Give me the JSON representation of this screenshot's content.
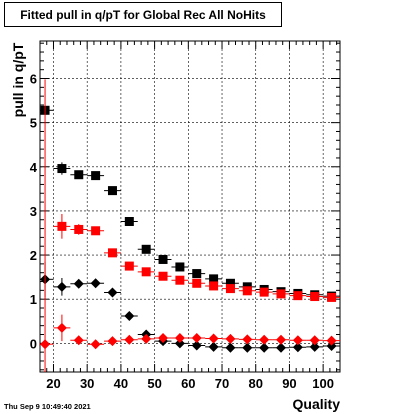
{
  "chart_data": {
    "type": "scatter",
    "title": "Fitted pull in q/pT for Global Rec All NoHits",
    "xlabel": "Quality",
    "ylabel": "pull in q/pT",
    "xlim": [
      16,
      105
    ],
    "ylim": [
      -0.65,
      6.85
    ],
    "x_ticks": [
      20,
      30,
      40,
      50,
      60,
      70,
      80,
      90,
      100
    ],
    "y_ticks": [
      0,
      1,
      2,
      3,
      4,
      5,
      6
    ],
    "grid": true,
    "legend": "none",
    "series": [
      {
        "marker": "square",
        "color": "#000000",
        "x": [
          17.5,
          22.5,
          27.5,
          32.5,
          37.5,
          42.5,
          47.5,
          52.5,
          57.5,
          62.5,
          67.5,
          72.5,
          77.5,
          82.5,
          87.5,
          92.5,
          97.5,
          102.5
        ],
        "y": [
          5.28,
          3.96,
          3.82,
          3.8,
          3.46,
          2.76,
          2.13,
          1.9,
          1.73,
          1.58,
          1.46,
          1.36,
          1.28,
          1.22,
          1.17,
          1.13,
          1.1,
          1.07
        ],
        "yerr": [
          0.1,
          0.14,
          0.07,
          0.05,
          0.05,
          0.05,
          0.04,
          0.04,
          0.03,
          0.03,
          0.03,
          0.03,
          0.02,
          0.02,
          0.02,
          0.02,
          0.02,
          0.02
        ]
      },
      {
        "marker": "square",
        "color": "#ff0000",
        "x": [
          22.5,
          27.5,
          32.5,
          37.5,
          42.5,
          47.5,
          52.5,
          57.5,
          62.5,
          67.5,
          72.5,
          77.5,
          82.5,
          87.5,
          92.5,
          97.5,
          102.5
        ],
        "y": [
          2.65,
          2.58,
          2.55,
          2.05,
          1.75,
          1.62,
          1.52,
          1.43,
          1.36,
          1.3,
          1.24,
          1.19,
          1.16,
          1.12,
          1.08,
          1.06,
          1.04
        ],
        "yerr": [
          0.28,
          0.12,
          0.06,
          0.05,
          0.04,
          0.04,
          0.04,
          0.03,
          0.03,
          0.03,
          0.03,
          0.02,
          0.02,
          0.02,
          0.02,
          0.02,
          0.02
        ]
      },
      {
        "marker": "diamond",
        "color": "#000000",
        "x": [
          17.5,
          22.5,
          27.5,
          32.5,
          37.5,
          42.5,
          47.5,
          52.5,
          57.5,
          62.5,
          67.5,
          72.5,
          77.5,
          82.5,
          87.5,
          92.5,
          97.5,
          102.5
        ],
        "y": [
          1.45,
          1.28,
          1.35,
          1.36,
          1.15,
          0.62,
          0.2,
          0.05,
          0.0,
          -0.05,
          -0.08,
          -0.1,
          -0.1,
          -0.1,
          -0.1,
          -0.09,
          -0.08,
          -0.06
        ],
        "yerr": [
          0.4,
          0.2,
          0.08,
          0.06,
          0.05,
          0.04,
          0.03,
          0.03,
          0.02,
          0.02,
          0.02,
          0.02,
          0.02,
          0.02,
          0.02,
          0.02,
          0.02,
          0.02
        ]
      },
      {
        "marker": "diamond",
        "color": "#ff0000",
        "x": [
          17.5,
          22.5,
          27.5,
          32.5,
          37.5,
          42.5,
          47.5,
          52.5,
          57.5,
          62.5,
          67.5,
          72.5,
          77.5,
          82.5,
          87.5,
          92.5,
          97.5,
          102.5
        ],
        "y": [
          -0.02,
          0.35,
          0.07,
          -0.02,
          0.05,
          0.08,
          0.1,
          0.12,
          0.12,
          0.12,
          0.11,
          0.1,
          0.09,
          0.08,
          0.08,
          0.07,
          0.07,
          0.06
        ],
        "yerr": [
          6.0,
          0.3,
          0.08,
          0.05,
          0.04,
          0.04,
          0.03,
          0.03,
          0.02,
          0.02,
          0.02,
          0.02,
          0.02,
          0.02,
          0.02,
          0.02,
          0.02,
          0.02
        ]
      }
    ]
  },
  "footer": {
    "timestamp": "Thu Sep  9 10:49:40 2021"
  }
}
